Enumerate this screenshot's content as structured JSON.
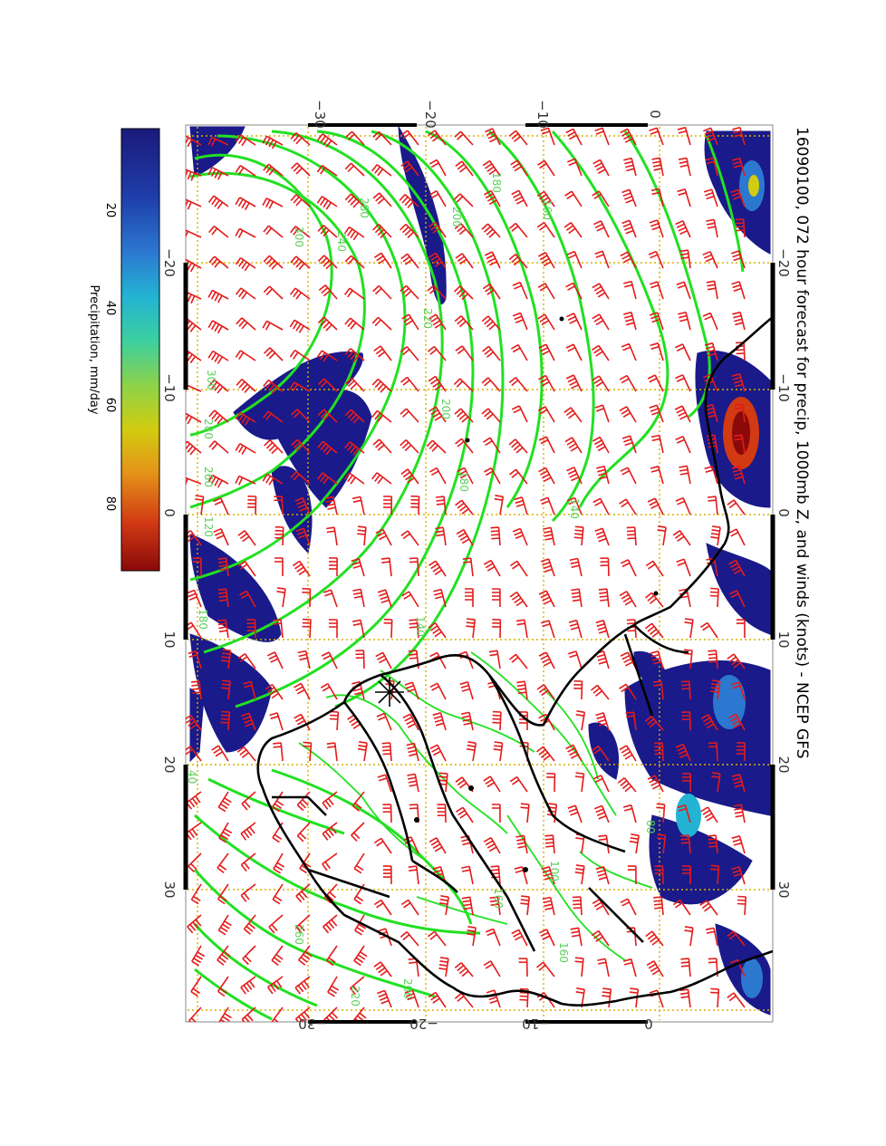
{
  "title": "16090100, 072 hour forecast for precip, 1000mb Z, and winds (knots) - NCEP GFS",
  "colorbar": {
    "label": "Precipitation, mm/day",
    "ticks": [
      "20",
      "40",
      "60",
      "80"
    ],
    "colors": [
      "#1a1a7a",
      "#1e3ca8",
      "#2c78d0",
      "#22b4d2",
      "#3ccfa0",
      "#8cd24a",
      "#d2cc10",
      "#e49218",
      "#d23a14",
      "#8a0a0a"
    ]
  },
  "axes": {
    "lat_ticks": [
      "−30",
      "−20",
      "−10",
      "0"
    ],
    "lon_ticks": [
      "−20",
      "−10",
      "0",
      "10",
      "20",
      "30"
    ]
  },
  "contour_labels": [
    "300",
    "280",
    "260",
    "240",
    "220",
    "200",
    "180",
    "160",
    "140",
    "120",
    "100",
    "80",
    "60",
    "40"
  ],
  "colors": {
    "contour": "#22e022",
    "barb": "#e41a1a",
    "grid": "#d8b000",
    "coast": "#000000",
    "precip_low": "#1a1a8a"
  }
}
